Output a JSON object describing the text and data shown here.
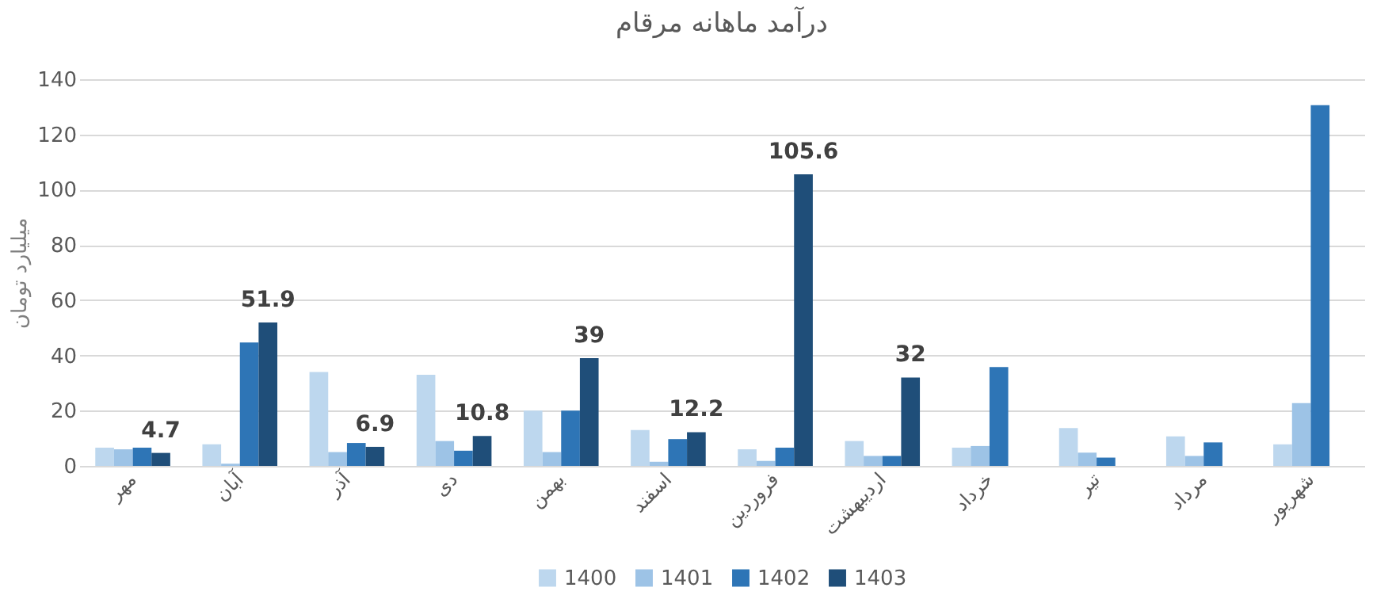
{
  "chart_data": {
    "type": "bar",
    "title": "درآمد ماهانه مرقام",
    "ylabel": "میلیارد تومان",
    "categories": [
      "مهر",
      "آبان",
      "آذر",
      "دی",
      "بهمن",
      "اسفند",
      "فروردین",
      "اردیبهشت",
      "خرداد",
      "تیر",
      "مرداد",
      "شهریور"
    ],
    "series": [
      {
        "name": "1400",
        "color": "#bdd7ee",
        "values": [
          6.6,
          7.8,
          34,
          33,
          20,
          13,
          6,
          9,
          6.6,
          13.7,
          10.7,
          7.8
        ]
      },
      {
        "name": "1401",
        "color": "#9dc3e6",
        "values": [
          6,
          0.8,
          5,
          9,
          5,
          1.5,
          1.8,
          3.6,
          7.2,
          4.8,
          3.6,
          22.7
        ]
      },
      {
        "name": "1402",
        "color": "#2e75b6",
        "values": [
          6.6,
          44.7,
          8.3,
          5.5,
          20,
          9.7,
          6.6,
          3.6,
          35.8,
          3,
          8.5,
          130.6
        ]
      },
      {
        "name": "1403",
        "color": "#1f4e79",
        "values": [
          4.7,
          51.9,
          6.9,
          10.8,
          39,
          12.2,
          105.6,
          32,
          null,
          null,
          null,
          null
        ],
        "value_labels": [
          "4.7",
          "51.9",
          "6.9",
          "10.8",
          "39",
          "12.2",
          "105.6",
          "32",
          null,
          null,
          null,
          null
        ]
      }
    ],
    "ylim": [
      0,
      140
    ],
    "yticks": [
      0,
      20,
      40,
      60,
      80,
      100,
      120,
      140
    ],
    "grid": "y",
    "legend": "bottom"
  }
}
